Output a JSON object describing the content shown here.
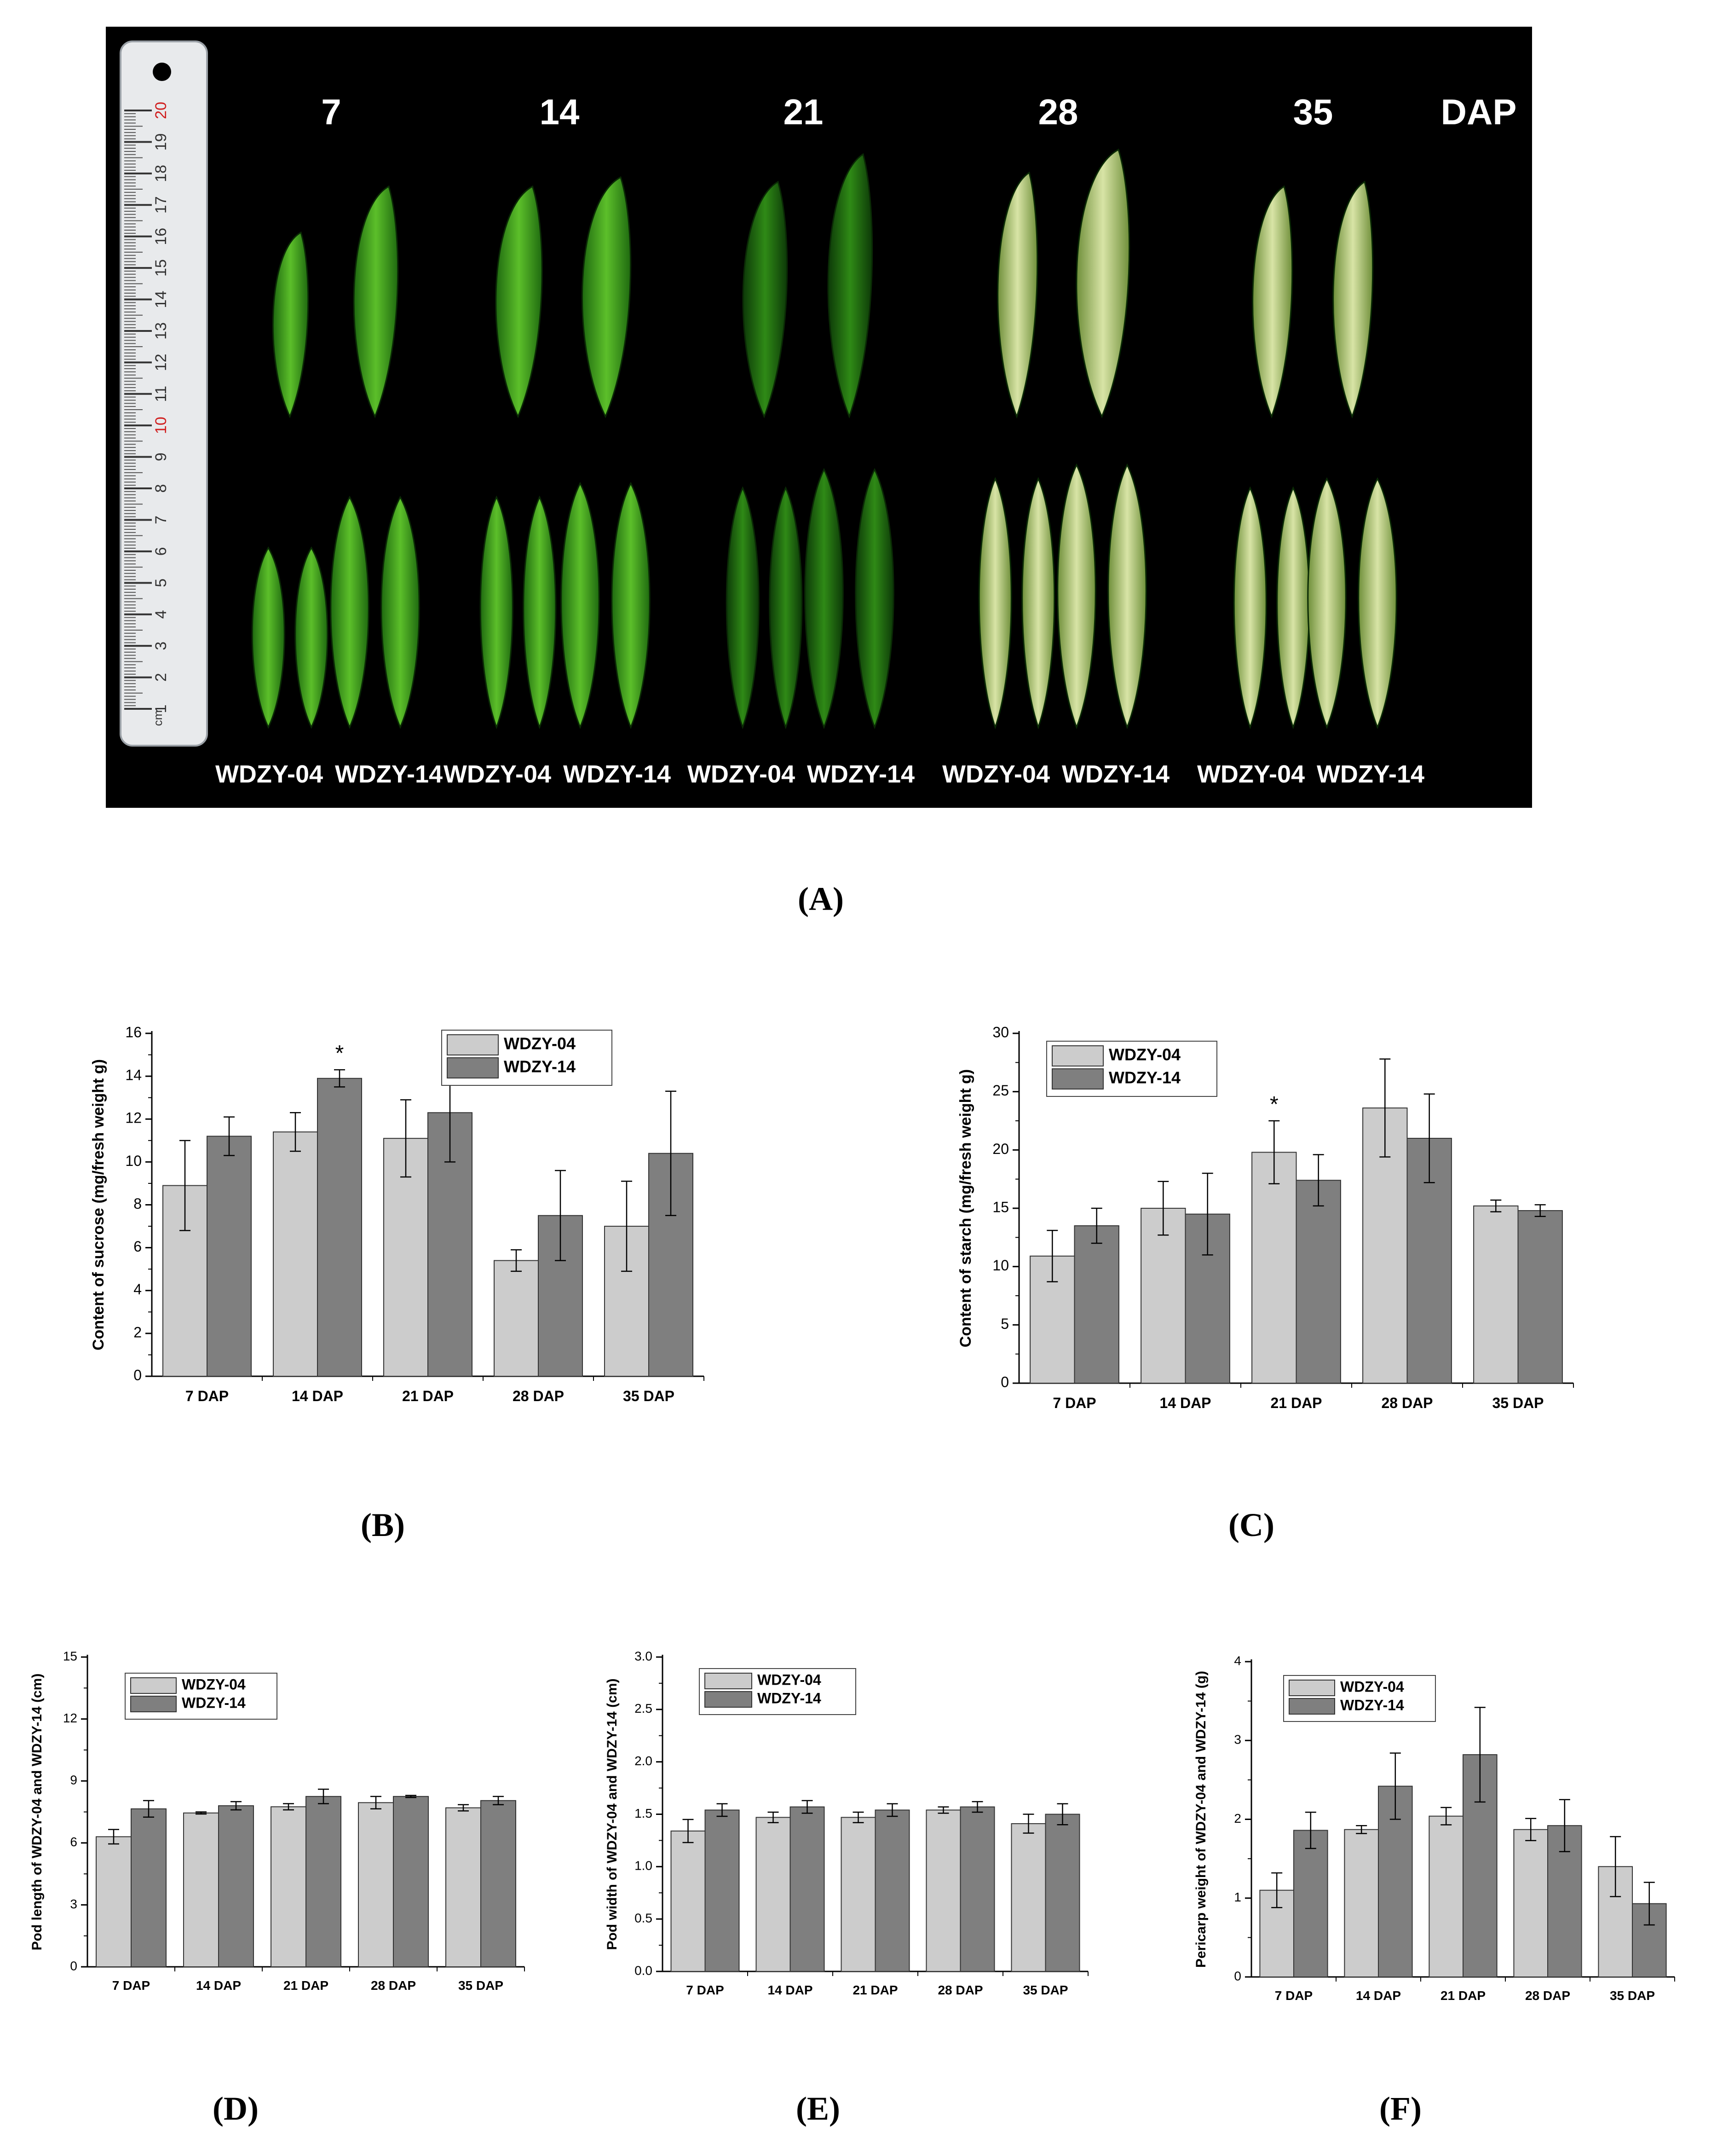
{
  "panel_labels": {
    "A": "(A)",
    "B": "(B)",
    "C": "(C)",
    "D": "(D)",
    "E": "(E)",
    "F": "(F)"
  },
  "photo": {
    "dap_labels": [
      "7",
      "14",
      "21",
      "28",
      "35"
    ],
    "dap_unit": "DAP",
    "cultivars": [
      "WDZY-04",
      "WDZY-14",
      "WDZY-04",
      "WDZY-14",
      "WDZY-04",
      "WDZY-14",
      "WDZY-04",
      "WDZY-14",
      "WDZY-04",
      "WDZY-14"
    ],
    "ruler_ticks": [
      "20",
      "19",
      "18",
      "17",
      "16",
      "15",
      "14",
      "13",
      "12",
      "11",
      "10",
      "9",
      "8",
      "7",
      "6",
      "5",
      "4",
      "3",
      "2",
      "1"
    ],
    "ruler_unit": "cm",
    "colors": {
      "background": "#000000",
      "pod_green": "#3f9a1e",
      "pod_pale": "#c9d89a",
      "ruler": "#e8eaec"
    }
  },
  "chart_data": [
    {
      "id": "B",
      "type": "bar",
      "categories": [
        "7 DAP",
        "14 DAP",
        "21 DAP",
        "28 DAP",
        "35 DAP"
      ],
      "series": [
        {
          "name": "WDZY-04",
          "color": "#cccccc",
          "values": [
            8.9,
            11.4,
            11.1,
            5.4,
            7.0
          ],
          "errors": [
            2.1,
            0.9,
            1.8,
            0.5,
            2.1
          ]
        },
        {
          "name": "WDZY-14",
          "color": "#7f7f7f",
          "values": [
            11.2,
            13.9,
            12.3,
            7.5,
            10.4
          ],
          "errors": [
            0.9,
            0.4,
            2.3,
            2.1,
            2.9
          ]
        }
      ],
      "ylabel": "Content of sucrose (mg/fresh weight g)",
      "ylim": [
        0,
        16
      ],
      "yticks": [
        "0",
        "2",
        "4",
        "6",
        "8",
        "10",
        "12",
        "14",
        "16"
      ],
      "legend": "top-right",
      "annotations": [
        {
          "text": "*",
          "category": "14 DAP"
        }
      ]
    },
    {
      "id": "C",
      "type": "bar",
      "categories": [
        "7 DAP",
        "14 DAP",
        "21 DAP",
        "28 DAP",
        "35 DAP"
      ],
      "series": [
        {
          "name": "WDZY-04",
          "color": "#cccccc",
          "values": [
            10.9,
            15.0,
            19.8,
            23.6,
            15.2
          ],
          "errors": [
            2.2,
            2.3,
            2.7,
            4.2,
            0.5
          ]
        },
        {
          "name": "WDZY-14",
          "color": "#7f7f7f",
          "values": [
            13.5,
            14.5,
            17.4,
            21.0,
            14.8
          ],
          "errors": [
            1.5,
            3.5,
            2.2,
            3.8,
            0.5
          ]
        }
      ],
      "ylabel": "Content of starch (mg/fresh weight g)",
      "ylim": [
        0,
        30
      ],
      "yticks": [
        "0",
        "5",
        "10",
        "15",
        "20",
        "25",
        "30"
      ],
      "legend": "top-left",
      "annotations": [
        {
          "text": "*",
          "category": "21 DAP"
        }
      ]
    },
    {
      "id": "D",
      "type": "bar",
      "categories": [
        "7 DAP",
        "14 DAP",
        "21 DAP",
        "28 DAP",
        "35 DAP"
      ],
      "series": [
        {
          "name": "WDZY-04",
          "color": "#cccccc",
          "values": [
            6.3,
            7.45,
            7.75,
            7.95,
            7.7
          ],
          "errors": [
            0.35,
            0.05,
            0.15,
            0.3,
            0.15
          ]
        },
        {
          "name": "WDZY-14",
          "color": "#7f7f7f",
          "values": [
            7.65,
            7.8,
            8.25,
            8.25,
            8.05
          ],
          "errors": [
            0.4,
            0.2,
            0.35,
            0.05,
            0.2
          ]
        }
      ],
      "ylabel": "Pod length of WDZY-04 and WDZY-14 (cm)",
      "ylim": [
        0,
        15
      ],
      "yticks": [
        "0",
        "3",
        "6",
        "9",
        "12",
        "15"
      ],
      "legend": "top-left",
      "annotations": []
    },
    {
      "id": "E",
      "type": "bar",
      "categories": [
        "7 DAP",
        "14 DAP",
        "21 DAP",
        "28 DAP",
        "35 DAP"
      ],
      "series": [
        {
          "name": "WDZY-04",
          "color": "#cccccc",
          "values": [
            1.34,
            1.47,
            1.47,
            1.54,
            1.41
          ],
          "errors": [
            0.11,
            0.05,
            0.05,
            0.03,
            0.09
          ]
        },
        {
          "name": "WDZY-14",
          "color": "#7f7f7f",
          "values": [
            1.54,
            1.57,
            1.54,
            1.57,
            1.5
          ],
          "errors": [
            0.06,
            0.06,
            0.06,
            0.05,
            0.1
          ]
        }
      ],
      "ylabel": "Pod width of WDZY-04 and WDZY-14 (cm)",
      "ylim": [
        0,
        3
      ],
      "yticks": [
        "0.0",
        "0.5",
        "1.0",
        "1.5",
        "2.0",
        "2.5",
        "3.0"
      ],
      "legend": "top-left",
      "annotations": []
    },
    {
      "id": "F",
      "type": "bar",
      "categories": [
        "7 DAP",
        "14 DAP",
        "21 DAP",
        "28 DAP",
        "35 DAP"
      ],
      "series": [
        {
          "name": "WDZY-04",
          "color": "#cccccc",
          "values": [
            1.1,
            1.87,
            2.04,
            1.87,
            1.4
          ],
          "errors": [
            0.22,
            0.05,
            0.11,
            0.14,
            0.38
          ]
        },
        {
          "name": "WDZY-14",
          "color": "#7f7f7f",
          "values": [
            1.86,
            2.42,
            2.82,
            1.92,
            0.93
          ],
          "errors": [
            0.23,
            0.42,
            0.6,
            0.33,
            0.27
          ]
        }
      ],
      "ylabel": "Pericarp weight of WDZY-04 and WDZY-14 (g)",
      "ylim": [
        0,
        4
      ],
      "yticks": [
        "0",
        "1",
        "2",
        "3",
        "4"
      ],
      "legend": "top-left",
      "annotations": []
    }
  ]
}
